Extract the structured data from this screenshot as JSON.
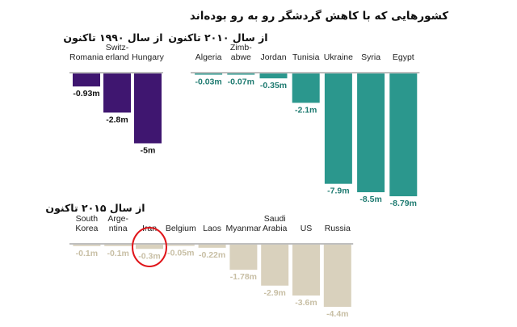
{
  "page_title": "کشورهایی که با کاهش گردشگر رو به رو بوده‌اند",
  "colors": {
    "panel_1990": "#3f1670",
    "panel_2010": "#2b978d",
    "panel_2015": "#d9d1bd",
    "panel_2015_label": "#c8bfa5",
    "panel_2010_label": "#1f7b71",
    "highlight_circle": "#e0161b"
  },
  "chart_data": [
    {
      "type": "bar",
      "title": "از سال ۱۹۹۰ تاکنون",
      "categories": [
        "Romania",
        "Switz-\nerland",
        "Hungary"
      ],
      "values": [
        -0.93,
        -2.8,
        -5
      ],
      "value_labels": [
        "-0.93m",
        "-2.8m",
        "-5m"
      ],
      "unit": "m",
      "ylim": [
        -9,
        0
      ],
      "grid": false,
      "color": "#3f1670"
    },
    {
      "type": "bar",
      "title": "از سال ۲۰۱۰ تاکنون",
      "categories": [
        "Algeria",
        "Zimb-\nabwe",
        "Jordan",
        "Tunisia",
        "Ukraine",
        "Syria",
        "Egypt"
      ],
      "values": [
        -0.03,
        -0.07,
        -0.35,
        -2.1,
        -7.9,
        -8.5,
        -8.79
      ],
      "value_labels": [
        "-0.03m",
        "-0.07m",
        "-0.35m",
        "-2.1m",
        "-7.9m",
        "-8.5m",
        "-8.79m"
      ],
      "unit": "m",
      "ylim": [
        -9,
        0
      ],
      "grid": false,
      "color": "#2b978d"
    },
    {
      "type": "bar",
      "title": "از سال ۲۰۱۵ تاکنون",
      "categories": [
        "South\nKorea",
        "Arge-\nntina",
        "Iran",
        "Belgium",
        "Laos",
        "Myanmar",
        "Saudi\nArabia",
        "US",
        "Russia"
      ],
      "values": [
        -0.1,
        -0.1,
        -0.3,
        -0.05,
        -0.22,
        -1.78,
        -2.9,
        -3.6,
        -4.4
      ],
      "value_labels": [
        "-0.1m",
        "-0.1m",
        "-0.3m",
        "-0.05m",
        "-0.22m",
        "-1.78m",
        "-2.9m",
        "-3.6m",
        "-4.4m"
      ],
      "unit": "m",
      "ylim": [
        -5,
        0
      ],
      "grid": false,
      "color": "#d9d1bd",
      "highlighted_category": "Iran"
    }
  ]
}
